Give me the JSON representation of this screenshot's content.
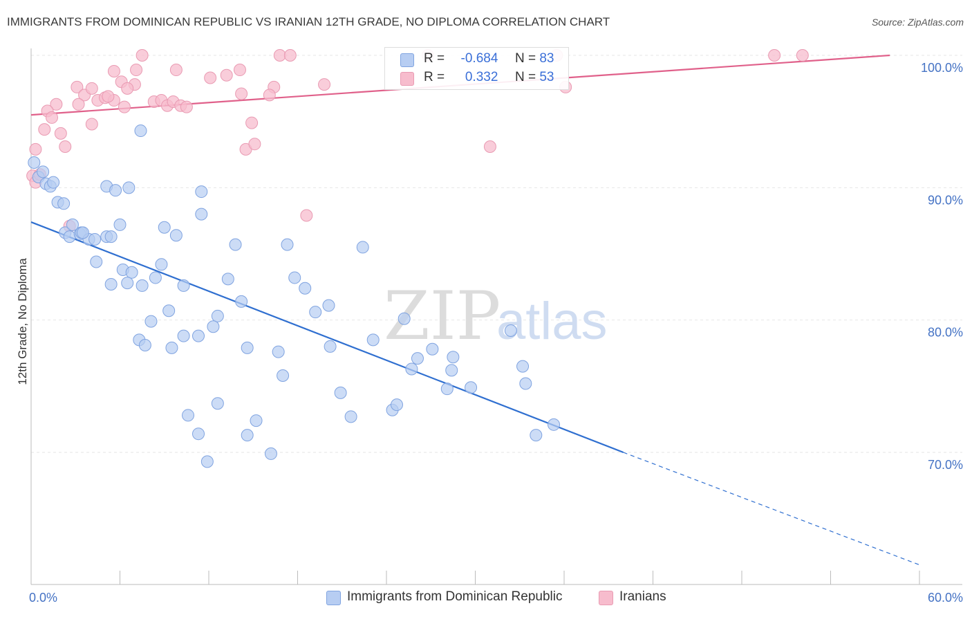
{
  "header": {
    "title": "IMMIGRANTS FROM DOMINICAN REPUBLIC VS IRANIAN 12TH GRADE, NO DIPLOMA CORRELATION CHART",
    "source": "Source: ZipAtlas.com"
  },
  "watermark": {
    "zip": "ZIP",
    "atlas": "atlas"
  },
  "legend": {
    "rows": [
      {
        "r_label": "R =",
        "r_value": "-0.684",
        "n_label": "N =",
        "n_value": "83"
      },
      {
        "r_label": "R =",
        "r_value": "0.332",
        "n_label": "N =",
        "n_value": "53"
      }
    ]
  },
  "bottom_legend": {
    "blue": "Immigrants from Dominican Republic",
    "pink": "Iranians"
  },
  "colors": {
    "blue_fill": "#b7cdf2",
    "blue_stroke": "#7fa3e0",
    "blue_line": "#2f6fd0",
    "pink_fill": "#f7bccd",
    "pink_stroke": "#e99ab2",
    "pink_line": "#e0608a",
    "grid": "#e6e6e6",
    "tick_text": "#4472c4"
  },
  "chart_data": {
    "type": "scatter",
    "title": "IMMIGRANTS FROM DOMINICAN REPUBLIC VS IRANIAN 12TH GRADE, NO DIPLOMA CORRELATION CHART",
    "xlabel": "",
    "ylabel": "12th Grade, No Diploma",
    "xlim": [
      0,
      60
    ],
    "ylim": [
      61,
      102
    ],
    "x_tick_labels": [
      {
        "value": 0,
        "label": "0.0%"
      },
      {
        "value": 60,
        "label": "60.0%"
      }
    ],
    "y_tick_labels": [
      {
        "value": 100,
        "label": "100.0%"
      },
      {
        "value": 90,
        "label": "90.0%"
      },
      {
        "value": 80,
        "label": "80.0%"
      },
      {
        "value": 70,
        "label": "70.0%"
      }
    ],
    "grid": true,
    "legend_placement": "top-center",
    "series": [
      {
        "name": "Immigrants from Dominican Republic",
        "color": "#b7cdf2",
        "trend": {
          "x0": 0,
          "y0": 87.4,
          "x1": 40,
          "y1": 70.0,
          "dashed_to_x": 60,
          "dashed_to_y": 61.5
        },
        "points": [
          [
            0.2,
            91.9
          ],
          [
            0.5,
            90.8
          ],
          [
            1.0,
            90.3
          ],
          [
            1.3,
            90.1
          ],
          [
            1.8,
            88.9
          ],
          [
            2.2,
            88.8
          ],
          [
            5.1,
            90.1
          ],
          [
            5.7,
            89.8
          ],
          [
            6.6,
            90.0
          ],
          [
            7.4,
            94.3
          ],
          [
            11.5,
            89.7
          ],
          [
            11.5,
            88.0
          ],
          [
            2.3,
            86.6
          ],
          [
            2.6,
            86.3
          ],
          [
            2.8,
            87.2
          ],
          [
            3.3,
            86.5
          ],
          [
            3.4,
            86.6
          ],
          [
            3.9,
            86.1
          ],
          [
            4.3,
            86.1
          ],
          [
            5.1,
            86.3
          ],
          [
            5.4,
            86.3
          ],
          [
            6.0,
            87.2
          ],
          [
            9.0,
            87.0
          ],
          [
            9.8,
            86.4
          ],
          [
            13.8,
            85.7
          ],
          [
            17.3,
            85.7
          ],
          [
            22.4,
            85.5
          ],
          [
            4.4,
            84.4
          ],
          [
            6.2,
            83.8
          ],
          [
            6.8,
            83.6
          ],
          [
            8.8,
            84.2
          ],
          [
            8.4,
            83.2
          ],
          [
            10.3,
            82.6
          ],
          [
            5.4,
            82.7
          ],
          [
            6.5,
            82.8
          ],
          [
            7.5,
            82.6
          ],
          [
            13.3,
            83.1
          ],
          [
            17.8,
            83.2
          ],
          [
            18.5,
            82.4
          ],
          [
            14.2,
            81.4
          ],
          [
            20.1,
            81.1
          ],
          [
            9.3,
            80.7
          ],
          [
            8.1,
            79.9
          ],
          [
            12.6,
            80.3
          ],
          [
            19.2,
            80.6
          ],
          [
            25.2,
            80.1
          ],
          [
            32.4,
            79.2
          ],
          [
            10.3,
            78.8
          ],
          [
            11.3,
            78.8
          ],
          [
            12.3,
            79.5
          ],
          [
            7.3,
            78.5
          ],
          [
            7.7,
            78.1
          ],
          [
            9.5,
            77.9
          ],
          [
            14.6,
            77.9
          ],
          [
            16.7,
            77.6
          ],
          [
            20.2,
            78.0
          ],
          [
            23.1,
            78.5
          ],
          [
            27.1,
            77.8
          ],
          [
            17.0,
            75.8
          ],
          [
            26.1,
            77.1
          ],
          [
            28.5,
            77.2
          ],
          [
            28.4,
            76.2
          ],
          [
            25.7,
            76.3
          ],
          [
            28.1,
            74.8
          ],
          [
            29.7,
            74.9
          ],
          [
            33.2,
            76.5
          ],
          [
            33.4,
            75.2
          ],
          [
            20.9,
            74.5
          ],
          [
            10.6,
            72.8
          ],
          [
            12.6,
            73.7
          ],
          [
            24.4,
            73.2
          ],
          [
            24.7,
            73.6
          ],
          [
            21.6,
            72.7
          ],
          [
            15.2,
            72.4
          ],
          [
            11.3,
            71.4
          ],
          [
            14.6,
            71.3
          ],
          [
            34.1,
            71.3
          ],
          [
            35.3,
            72.1
          ],
          [
            11.9,
            69.3
          ],
          [
            16.2,
            69.9
          ],
          [
            0.8,
            91.2
          ],
          [
            1.5,
            90.4
          ],
          [
            3.5,
            86.6
          ]
        ]
      },
      {
        "name": "Iranians",
        "color": "#f7bccd",
        "trend": {
          "x0": 0,
          "y0": 95.5,
          "x1": 58,
          "y1": 100.0
        },
        "points": [
          [
            7.5,
            100.0
          ],
          [
            16.8,
            100.0
          ],
          [
            35.5,
            100.0
          ],
          [
            50.2,
            100.0
          ],
          [
            52.1,
            100.0
          ],
          [
            5.6,
            98.8
          ],
          [
            7.1,
            98.9
          ],
          [
            9.8,
            98.9
          ],
          [
            12.1,
            98.3
          ],
          [
            13.2,
            98.5
          ],
          [
            14.1,
            98.9
          ],
          [
            6.1,
            98.0
          ],
          [
            7.0,
            97.8
          ],
          [
            3.1,
            97.6
          ],
          [
            3.6,
            97.0
          ],
          [
            4.1,
            97.5
          ],
          [
            6.5,
            97.5
          ],
          [
            14.2,
            97.1
          ],
          [
            16.4,
            97.6
          ],
          [
            19.8,
            97.8
          ],
          [
            36.1,
            97.6
          ],
          [
            1.7,
            96.3
          ],
          [
            3.2,
            96.3
          ],
          [
            4.5,
            96.6
          ],
          [
            5.0,
            96.8
          ],
          [
            5.6,
            96.6
          ],
          [
            6.3,
            96.1
          ],
          [
            8.3,
            96.5
          ],
          [
            8.8,
            96.6
          ],
          [
            9.2,
            96.2
          ],
          [
            9.6,
            96.5
          ],
          [
            10.1,
            96.2
          ],
          [
            16.1,
            97.0
          ],
          [
            1.1,
            95.8
          ],
          [
            1.4,
            95.3
          ],
          [
            4.1,
            94.8
          ],
          [
            14.9,
            94.9
          ],
          [
            0.9,
            94.4
          ],
          [
            2.0,
            94.1
          ],
          [
            0.3,
            92.9
          ],
          [
            2.3,
            93.1
          ],
          [
            14.5,
            92.9
          ],
          [
            15.1,
            93.3
          ],
          [
            31.0,
            93.1
          ],
          [
            0.1,
            90.9
          ],
          [
            0.3,
            90.4
          ],
          [
            0.6,
            91.0
          ],
          [
            18.6,
            87.9
          ],
          [
            2.6,
            87.1
          ],
          [
            17.5,
            100.0
          ],
          [
            26.8,
            100.0
          ],
          [
            5.2,
            96.9
          ],
          [
            10.5,
            96.1
          ]
        ]
      }
    ]
  }
}
